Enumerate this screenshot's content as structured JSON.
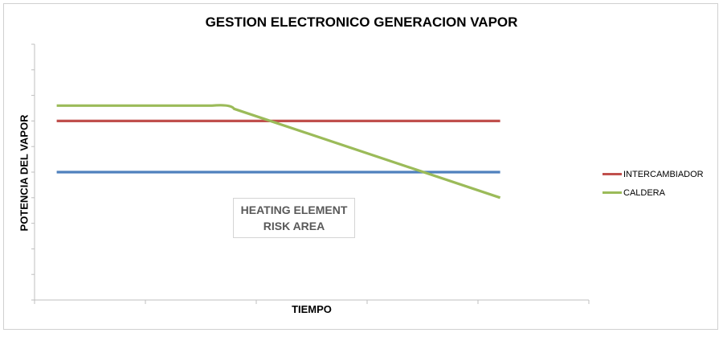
{
  "chart_data": {
    "type": "line",
    "title": "GESTION ELECTRONICO GENERACION VAPOR",
    "xlabel": "TIEMPO",
    "ylabel": "POTENCIA DEL VAPOR",
    "xlim": [
      0,
      5
    ],
    "ylim": [
      0,
      10
    ],
    "y_tick_count": 11,
    "x_tick_count": 6,
    "grid": false,
    "legend": "right",
    "series": [
      {
        "name": "INTERCAMBIADOR",
        "color": "#c0504d",
        "x": [
          0.2,
          4.2
        ],
        "y": [
          7,
          7
        ]
      },
      {
        "name": "",
        "color": "#4f81bd",
        "x": [
          0.2,
          4.2
        ],
        "y": [
          5,
          5
        ]
      },
      {
        "name": "CALDERA",
        "color": "#9bbb59",
        "x": [
          0.2,
          1.6,
          1.8,
          4.2
        ],
        "y": [
          7.6,
          7.6,
          7.6,
          4
        ]
      }
    ],
    "annotation": [
      "HEATING ELEMENT",
      "RISK AREA"
    ]
  }
}
